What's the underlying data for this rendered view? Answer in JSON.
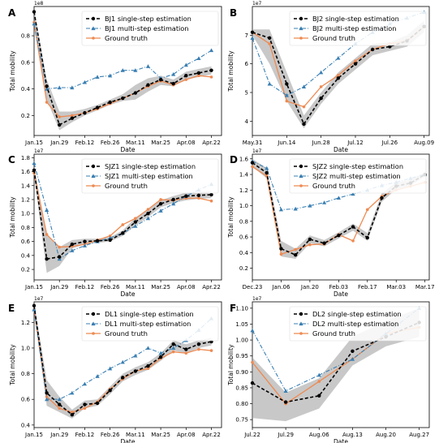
{
  "colors": {
    "single": "#000000",
    "multi": "#3a7fb2",
    "truth": "#ee8a52",
    "band": "#9b9b9b"
  },
  "chart_data": [
    {
      "panel": "A",
      "type": "line",
      "scale_label": "1e8",
      "xlabel": "Date",
      "ylabel": "Total mobility",
      "xticks": [
        "Jan.15",
        "Jan.29",
        "Feb.12",
        "Feb.26",
        "Mar.11",
        "Mar.25",
        "Apr.08",
        "Apr.22"
      ],
      "yticks": [
        0.2,
        0.4,
        0.6,
        0.8
      ],
      "xlim": [
        0,
        14.8
      ],
      "ylim": [
        0.05,
        1.02
      ],
      "x": [
        0,
        1,
        2,
        3,
        4,
        5,
        6,
        7,
        8,
        9,
        10,
        11,
        12,
        13,
        14
      ],
      "series": [
        {
          "name": "BJ1 single-step estimation",
          "values": [
            0.98,
            0.42,
            0.13,
            0.18,
            0.22,
            0.26,
            0.3,
            0.33,
            0.37,
            0.43,
            0.47,
            0.44,
            0.5,
            0.52,
            0.54
          ]
        },
        {
          "name": "BJ1 multi-step estimation",
          "values": [
            0.89,
            0.4,
            0.41,
            0.41,
            0.45,
            0.49,
            0.5,
            0.54,
            0.54,
            0.57,
            0.48,
            0.51,
            0.58,
            0.63,
            0.69
          ]
        },
        {
          "name": "Ground truth",
          "values": [
            0.9,
            0.3,
            0.19,
            0.2,
            0.22,
            0.25,
            0.29,
            0.33,
            0.37,
            0.42,
            0.46,
            0.43,
            0.47,
            0.5,
            0.49
          ]
        }
      ],
      "band": {
        "lower": [
          0.93,
          0.32,
          0.09,
          0.15,
          0.2,
          0.24,
          0.28,
          0.31,
          0.32,
          0.38,
          0.43,
          0.42,
          0.47,
          0.49,
          0.51
        ],
        "upper": [
          1.0,
          0.47,
          0.23,
          0.23,
          0.25,
          0.28,
          0.32,
          0.36,
          0.43,
          0.48,
          0.5,
          0.47,
          0.53,
          0.55,
          0.57
        ]
      }
    },
    {
      "panel": "B",
      "type": "line",
      "scale_label": "1e7",
      "xlabel": "Date",
      "ylabel": "Total mobility",
      "xticks": [
        "May.31",
        "Jun.14",
        "Jun.28",
        "Jul.12",
        "Jul.26",
        "Aug.09"
      ],
      "yticks": [
        4,
        5,
        6,
        7
      ],
      "xlim": [
        0,
        10.3
      ],
      "ylim": [
        3.5,
        8.0
      ],
      "x": [
        0,
        1,
        2,
        3,
        4,
        5,
        6,
        7,
        8,
        9,
        10
      ],
      "series": [
        {
          "name": "BJ2 single-step estimation",
          "values": [
            7.1,
            6.9,
            5.3,
            3.9,
            4.8,
            5.5,
            6.0,
            6.5,
            6.6,
            6.8,
            7.3
          ]
        },
        {
          "name": "BJ2 multi-step estimation",
          "values": [
            6.9,
            5.3,
            4.9,
            5.2,
            5.7,
            6.2,
            6.7,
            7.1,
            7.4,
            7.6,
            7.8
          ]
        },
        {
          "name": "Ground truth",
          "values": [
            7.1,
            6.7,
            4.7,
            4.5,
            5.2,
            5.6,
            6.1,
            6.5,
            6.7,
            6.8,
            7.3
          ]
        }
      ],
      "band": {
        "lower": [
          7.0,
          6.0,
          4.7,
          3.75,
          4.6,
          5.3,
          5.8,
          6.3,
          6.45,
          6.6,
          7.1
        ],
        "upper": [
          7.2,
          7.2,
          5.7,
          4.2,
          5.0,
          5.7,
          6.2,
          6.7,
          6.75,
          7.0,
          7.5
        ]
      }
    },
    {
      "panel": "C",
      "type": "line",
      "scale_label": "1e7",
      "xlabel": "Date",
      "ylabel": "Total mobility",
      "xticks": [
        "Jan.15",
        "Jan.29",
        "Feb.12",
        "Feb.26",
        "Mar.11",
        "Mar.25",
        "Apr.08",
        "Apr.22"
      ],
      "yticks": [
        0.2,
        0.4,
        0.6,
        0.8,
        1.0,
        1.2,
        1.4,
        1.6,
        1.8
      ],
      "xlim": [
        0,
        14.8
      ],
      "ylim": [
        0.05,
        1.85
      ],
      "x": [
        0,
        1,
        2,
        3,
        4,
        5,
        6,
        7,
        8,
        9,
        10,
        11,
        12,
        13,
        14
      ],
      "series": [
        {
          "name": "SJZ1 single-step estimation",
          "values": [
            1.62,
            0.35,
            0.38,
            0.56,
            0.6,
            0.61,
            0.62,
            0.72,
            0.88,
            1.0,
            1.14,
            1.2,
            1.25,
            1.26,
            1.27
          ]
        },
        {
          "name": "SJZ1 multi-step estimation",
          "values": [
            1.72,
            1.05,
            0.35,
            0.47,
            0.54,
            0.6,
            0.65,
            0.72,
            0.82,
            0.93,
            1.04,
            1.14,
            1.25,
            1.34,
            1.42
          ]
        },
        {
          "name": "Ground truth",
          "values": [
            1.58,
            0.7,
            0.52,
            0.53,
            0.56,
            0.62,
            0.68,
            0.84,
            0.93,
            1.06,
            1.2,
            1.19,
            1.22,
            1.22,
            1.18
          ]
        }
      ],
      "band": {
        "lower": [
          1.55,
          0.15,
          0.25,
          0.5,
          0.56,
          0.58,
          0.6,
          0.68,
          0.83,
          0.95,
          1.09,
          1.15,
          1.19,
          1.21,
          1.22
        ],
        "upper": [
          1.68,
          0.7,
          0.52,
          0.62,
          0.64,
          0.64,
          0.66,
          0.76,
          0.94,
          1.05,
          1.19,
          1.25,
          1.3,
          1.31,
          1.32
        ]
      }
    },
    {
      "panel": "D",
      "type": "line",
      "scale_label": "1e7",
      "xlabel": "Date",
      "ylabel": "Total mobility",
      "xticks": [
        "Dec.23",
        "Jan.06",
        "Jan.20",
        "Feb.03",
        "Feb.17",
        "Mar.03",
        "Mar.17"
      ],
      "yticks": [
        0.2,
        0.4,
        0.6,
        0.8,
        1.0,
        1.2,
        1.4,
        1.6
      ],
      "xlim": [
        0,
        12.3
      ],
      "ylim": [
        0.05,
        1.66
      ],
      "x": [
        0,
        1,
        2,
        3,
        4,
        5,
        6,
        7,
        8,
        9,
        10,
        11,
        12
      ],
      "series": [
        {
          "name": "SJZ2 single-step estimation",
          "values": [
            1.55,
            1.42,
            0.45,
            0.37,
            0.57,
            0.52,
            0.62,
            0.73,
            0.59,
            1.1,
            1.25,
            1.29,
            1.4
          ]
        },
        {
          "name": "SJZ2 multi-step estimation",
          "values": [
            1.57,
            1.48,
            0.95,
            0.96,
            1.0,
            1.04,
            1.1,
            1.15,
            1.2,
            1.26,
            1.3,
            1.35,
            1.4
          ]
        },
        {
          "name": "Ground truth",
          "values": [
            1.5,
            1.38,
            0.38,
            0.44,
            0.5,
            0.51,
            0.63,
            0.55,
            0.95,
            1.12,
            1.2,
            1.25,
            1.3
          ]
        }
      ],
      "band": {
        "lower": [
          1.5,
          1.35,
          0.35,
          0.32,
          0.52,
          0.48,
          0.58,
          0.68,
          0.55,
          1.05,
          1.21,
          1.26,
          1.37
        ],
        "upper": [
          1.6,
          1.48,
          0.55,
          0.45,
          0.62,
          0.56,
          0.66,
          0.77,
          0.65,
          1.16,
          1.3,
          1.33,
          1.43
        ]
      }
    },
    {
      "panel": "E",
      "type": "line",
      "scale_label": "1e7",
      "xlabel": "Date",
      "ylabel": "Total mobility",
      "xticks": [
        "Jan.15",
        "Jan.29",
        "Feb.12",
        "Feb.26",
        "Mar.11",
        "Mar.25",
        "Apr.08",
        "Apr.22"
      ],
      "yticks": [
        0.4,
        0.6,
        0.8,
        1.0,
        1.2
      ],
      "xlim": [
        0,
        14.8
      ],
      "ylim": [
        0.38,
        1.36
      ],
      "x": [
        0,
        1,
        2,
        3,
        4,
        5,
        6,
        7,
        8,
        9,
        10,
        11,
        12,
        13,
        14
      ],
      "series": [
        {
          "name": "DL1 single-step estimation",
          "values": [
            1.33,
            0.65,
            0.56,
            0.48,
            0.56,
            0.57,
            0.67,
            0.77,
            0.82,
            0.86,
            0.93,
            1.03,
            0.99,
            1.03,
            1.05
          ]
        },
        {
          "name": "DL1 multi-step estimation",
          "values": [
            1.3,
            0.6,
            0.6,
            0.65,
            0.72,
            0.78,
            0.84,
            0.89,
            0.94,
            1.0,
            0.96,
            1.0,
            1.06,
            1.14,
            1.23
          ]
        },
        {
          "name": "Ground truth",
          "values": [
            1.3,
            0.62,
            0.53,
            0.5,
            0.53,
            0.58,
            0.68,
            0.76,
            0.82,
            0.84,
            0.92,
            0.97,
            0.96,
            0.99,
            0.98
          ]
        }
      ],
      "band": {
        "lower": [
          1.28,
          0.55,
          0.5,
          0.45,
          0.53,
          0.55,
          0.64,
          0.74,
          0.79,
          0.83,
          0.9,
          0.98,
          0.96,
          1.0,
          1.02
        ],
        "upper": [
          1.36,
          0.75,
          0.62,
          0.52,
          0.59,
          0.6,
          0.7,
          0.8,
          0.85,
          0.89,
          0.96,
          1.06,
          1.03,
          1.06,
          1.08
        ]
      }
    },
    {
      "panel": "F",
      "type": "line",
      "scale_label": "1e7",
      "xlabel": "Date",
      "ylabel": "Total mobility",
      "xticks": [
        "Jul.22",
        "Jul.29",
        "Aug.06",
        "Aug.13",
        "Aug.20",
        "Aug.27"
      ],
      "yticks": [
        0.75,
        0.8,
        0.85,
        0.9,
        0.95,
        1.0,
        1.05,
        1.1
      ],
      "xlim": [
        0,
        5.3
      ],
      "ylim": [
        0.725,
        1.12
      ],
      "x": [
        0,
        1,
        2,
        3,
        4,
        5
      ],
      "series": [
        {
          "name": "DL2 single-step estimation",
          "values": [
            0.865,
            0.805,
            0.825,
            0.965,
            1.01,
            1.055
          ]
        },
        {
          "name": "DL2 multi-step estimation",
          "values": [
            1.03,
            0.84,
            0.89,
            0.94,
            1.02,
            1.1
          ]
        },
        {
          "name": "Ground truth",
          "values": [
            0.93,
            0.8,
            0.87,
            0.94,
            1.02,
            1.04
          ]
        }
      ],
      "band": {
        "lower": [
          0.755,
          0.745,
          0.785,
          0.92,
          0.98,
          1.01
        ],
        "upper": [
          0.945,
          0.835,
          0.88,
          1.01,
          1.06,
          1.1
        ]
      }
    }
  ]
}
